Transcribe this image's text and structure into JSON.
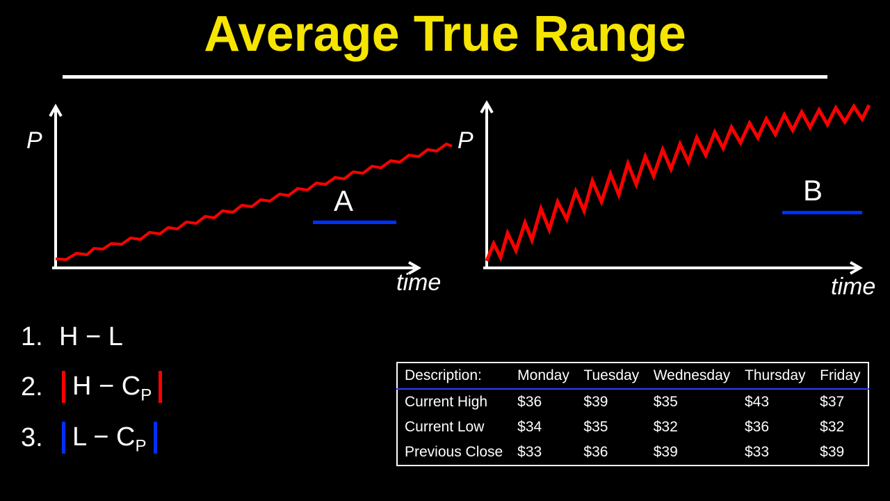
{
  "title": {
    "text": "Average True Range",
    "color": "#f5e500",
    "fontsize": 72,
    "underline_color": "#ffffff"
  },
  "charts": {
    "A": {
      "y_label": "P",
      "x_label": "time",
      "letter": "A",
      "letter_underline_color": "#0030ff",
      "axis_color": "#ffffff",
      "line_color": "#ff0000",
      "line_width": 4,
      "volatility": "low",
      "points": [
        [
          50,
          240
        ],
        [
          65,
          235
        ],
        [
          80,
          232
        ],
        [
          95,
          228
        ],
        [
          105,
          225
        ],
        [
          118,
          220
        ],
        [
          130,
          218
        ],
        [
          145,
          213
        ],
        [
          158,
          210
        ],
        [
          172,
          206
        ],
        [
          185,
          202
        ],
        [
          200,
          198
        ],
        [
          212,
          195
        ],
        [
          225,
          191
        ],
        [
          238,
          187
        ],
        [
          252,
          183
        ],
        [
          265,
          179
        ],
        [
          278,
          175
        ],
        [
          290,
          171
        ],
        [
          305,
          167
        ],
        [
          318,
          163
        ],
        [
          332,
          159
        ],
        [
          345,
          155
        ],
        [
          358,
          151
        ],
        [
          372,
          147
        ],
        [
          385,
          143
        ],
        [
          398,
          139
        ],
        [
          412,
          135
        ],
        [
          425,
          131
        ],
        [
          438,
          127
        ],
        [
          452,
          123
        ],
        [
          465,
          119
        ],
        [
          478,
          115
        ],
        [
          492,
          111
        ],
        [
          505,
          107
        ],
        [
          518,
          103
        ],
        [
          532,
          99
        ],
        [
          545,
          95
        ],
        [
          558,
          91
        ],
        [
          572,
          87
        ],
        [
          585,
          83
        ],
        [
          598,
          79
        ],
        [
          612,
          75
        ],
        [
          620,
          72
        ]
      ],
      "jitter": 3
    },
    "B": {
      "y_label": "P",
      "x_label": "time",
      "letter": "B",
      "letter_underline_color": "#0030ff",
      "axis_color": "#ffffff",
      "line_color": "#ff0000",
      "line_width": 5,
      "volatility": "high",
      "points": [
        [
          50,
          240
        ],
        [
          60,
          215
        ],
        [
          70,
          235
        ],
        [
          80,
          200
        ],
        [
          92,
          225
        ],
        [
          105,
          185
        ],
        [
          115,
          210
        ],
        [
          128,
          165
        ],
        [
          140,
          195
        ],
        [
          152,
          155
        ],
        [
          165,
          180
        ],
        [
          178,
          140
        ],
        [
          190,
          168
        ],
        [
          202,
          125
        ],
        [
          215,
          155
        ],
        [
          228,
          115
        ],
        [
          240,
          145
        ],
        [
          253,
          100
        ],
        [
          265,
          130
        ],
        [
          278,
          90
        ],
        [
          290,
          118
        ],
        [
          303,
          80
        ],
        [
          315,
          108
        ],
        [
          328,
          72
        ],
        [
          340,
          98
        ],
        [
          352,
          63
        ],
        [
          365,
          88
        ],
        [
          378,
          55
        ],
        [
          390,
          78
        ],
        [
          402,
          48
        ],
        [
          415,
          70
        ],
        [
          428,
          42
        ],
        [
          440,
          63
        ],
        [
          452,
          36
        ],
        [
          465,
          58
        ],
        [
          478,
          30
        ],
        [
          490,
          52
        ],
        [
          503,
          26
        ],
        [
          515,
          48
        ],
        [
          528,
          23
        ],
        [
          540,
          44
        ],
        [
          552,
          20
        ],
        [
          565,
          40
        ],
        [
          578,
          18
        ],
        [
          590,
          36
        ],
        [
          600,
          16
        ]
      ],
      "jitter": 0
    }
  },
  "formulas": {
    "items": [
      {
        "num": "1.",
        "expr": "H − L",
        "abs": false
      },
      {
        "num": "2.",
        "expr_parts": [
          "H − C",
          "P"
        ],
        "abs": true,
        "bar_color": "#ff0000"
      },
      {
        "num": "3.",
        "expr_parts": [
          "L − C",
          "P"
        ],
        "abs": true,
        "bar_color": "#0030ff"
      }
    ],
    "text_color": "#ffffff",
    "fontsize": 38
  },
  "table": {
    "border_color": "#ffffff",
    "header_underline_color": "#3040ff",
    "text_color": "#ffffff",
    "fontsize": 21,
    "columns": [
      "Description:",
      "Monday",
      "Tuesday",
      "Wednesday",
      "Thursday",
      "Friday"
    ],
    "rows": [
      [
        "Current High",
        "$36",
        "$39",
        "$35",
        "$43",
        "$37"
      ],
      [
        "Current Low",
        "$34",
        "$35",
        "$32",
        "$36",
        "$32"
      ],
      [
        "Previous Close",
        "$33",
        "$36",
        "$39",
        "$33",
        "$39"
      ]
    ]
  },
  "background_color": "#000000"
}
